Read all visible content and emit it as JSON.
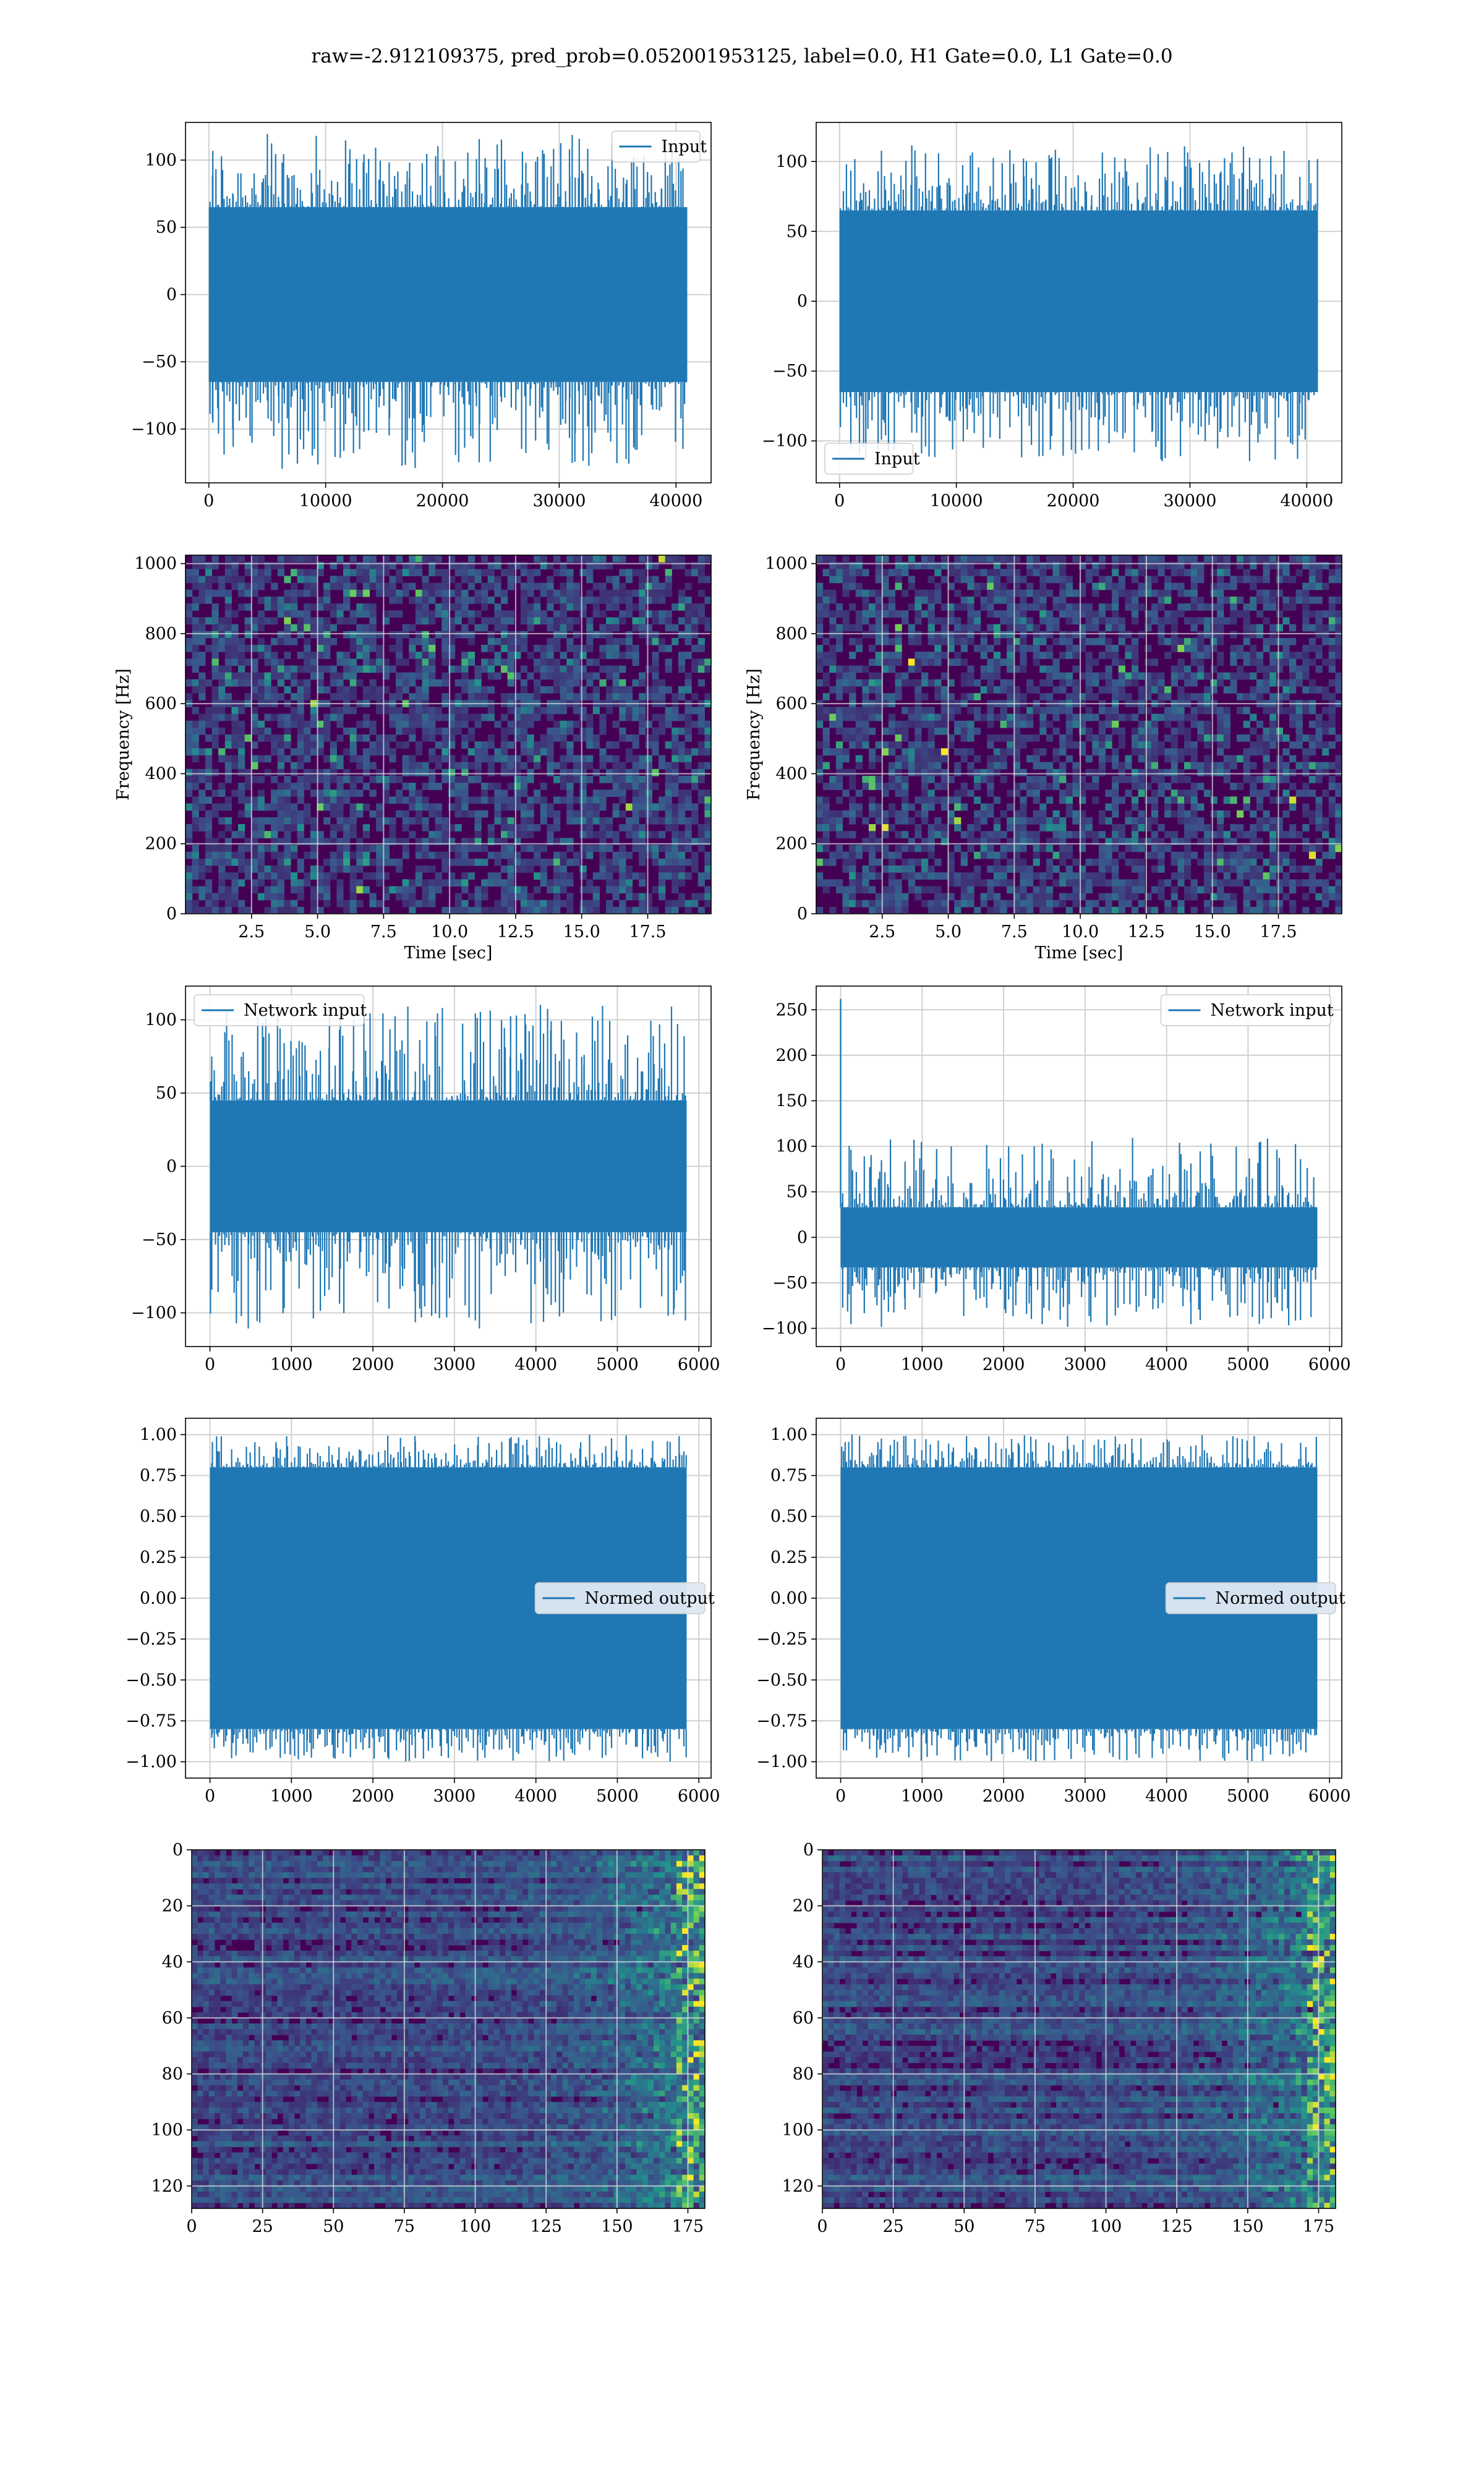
{
  "figure": {
    "title": "raw=-2.912109375, pred_prob=0.052001953125, label=0.0, H1 Gate=0.0, L1 Gate=0.0"
  },
  "colors": {
    "series": "#1f77b4",
    "grid": "#d0d0d0",
    "viridis": [
      "#440154",
      "#3b528b",
      "#21918c",
      "#5ec962",
      "#fde725"
    ]
  },
  "chart_data": [
    {
      "id": "input-h1",
      "type": "line",
      "title": "",
      "xlabel": "",
      "ylabel": "",
      "xlim": [
        -2000,
        43000
      ],
      "ylim": [
        -140,
        128
      ],
      "xticks": [
        0,
        10000,
        20000,
        30000,
        40000
      ],
      "yticks": [
        -100,
        -50,
        0,
        50,
        100
      ],
      "grid": true,
      "legend": "upper right",
      "series": [
        {
          "name": "Input",
          "x_range": [
            0,
            40960
          ],
          "band": [
            -65,
            65
          ],
          "peaks": [
            -130,
            120
          ]
        }
      ]
    },
    {
      "id": "input-l1",
      "type": "line",
      "title": "",
      "xlabel": "",
      "ylabel": "",
      "xlim": [
        -2000,
        43000
      ],
      "ylim": [
        -130,
        128
      ],
      "xticks": [
        0,
        10000,
        20000,
        30000,
        40000
      ],
      "yticks": [
        -100,
        -50,
        0,
        50,
        100
      ],
      "grid": true,
      "legend": "lower left",
      "series": [
        {
          "name": "Input",
          "x_range": [
            0,
            40960
          ],
          "band": [
            -65,
            65
          ],
          "peaks": [
            -115,
            112
          ]
        }
      ]
    },
    {
      "id": "spectrogram-h1",
      "type": "heatmap",
      "title": "",
      "xlabel": "Time [sec]",
      "ylabel": "Frequency [Hz]",
      "xlim": [
        0,
        19.9
      ],
      "ylim": [
        0,
        1024
      ],
      "xticks": [
        2.5,
        5.0,
        7.5,
        10.0,
        12.5,
        15.0,
        17.5
      ],
      "yticks": [
        0,
        200,
        400,
        600,
        800,
        1000
      ],
      "grid": true,
      "colormap": "viridis"
    },
    {
      "id": "spectrogram-l1",
      "type": "heatmap",
      "title": "",
      "xlabel": "Time [sec]",
      "ylabel": "Frequency [Hz]",
      "xlim": [
        0,
        19.9
      ],
      "ylim": [
        0,
        1024
      ],
      "xticks": [
        2.5,
        5.0,
        7.5,
        10.0,
        12.5,
        15.0,
        17.5
      ],
      "yticks": [
        0,
        200,
        400,
        600,
        800,
        1000
      ],
      "grid": true,
      "colormap": "viridis"
    },
    {
      "id": "network-input-h1",
      "type": "line",
      "title": "",
      "xlabel": "",
      "ylabel": "",
      "xlim": [
        -300,
        6150
      ],
      "ylim": [
        -123,
        123
      ],
      "xticks": [
        0,
        1000,
        2000,
        3000,
        4000,
        5000,
        6000
      ],
      "yticks": [
        -100,
        -50,
        0,
        50,
        100
      ],
      "grid": true,
      "legend": "upper left",
      "series": [
        {
          "name": "Network input",
          "x_range": [
            0,
            5850
          ],
          "band": [
            -45,
            45
          ],
          "peaks": [
            -112,
            112
          ]
        }
      ]
    },
    {
      "id": "network-input-l1",
      "type": "line",
      "title": "",
      "xlabel": "",
      "ylabel": "",
      "xlim": [
        -300,
        6150
      ],
      "ylim": [
        -120,
        276
      ],
      "xticks": [
        0,
        1000,
        2000,
        3000,
        4000,
        5000,
        6000
      ],
      "yticks": [
        -100,
        -50,
        0,
        50,
        100,
        150,
        200,
        250
      ],
      "grid": true,
      "legend": "upper right",
      "series": [
        {
          "name": "Network input",
          "x_range": [
            0,
            5850
          ],
          "band": [
            -33,
            33
          ],
          "peaks": [
            -100,
            110
          ],
          "spike": [
            0,
            262
          ]
        }
      ]
    },
    {
      "id": "normed-output-h1",
      "type": "line",
      "title": "",
      "xlabel": "",
      "ylabel": "",
      "xlim": [
        -300,
        6150
      ],
      "ylim": [
        -1.1,
        1.1
      ],
      "xticks": [
        0,
        1000,
        2000,
        3000,
        4000,
        5000,
        6000
      ],
      "yticks": [
        -1.0,
        -0.75,
        -0.5,
        -0.25,
        0.0,
        0.25,
        0.5,
        0.75,
        1.0
      ],
      "grid": true,
      "legend": "center right",
      "series": [
        {
          "name": "Normed output",
          "x_range": [
            0,
            5850
          ],
          "band": [
            -0.8,
            0.8
          ],
          "peaks": [
            -1.0,
            1.0
          ]
        }
      ]
    },
    {
      "id": "normed-output-l1",
      "type": "line",
      "title": "",
      "xlabel": "",
      "ylabel": "",
      "xlim": [
        -300,
        6150
      ],
      "ylim": [
        -1.1,
        1.1
      ],
      "xticks": [
        0,
        1000,
        2000,
        3000,
        4000,
        5000,
        6000
      ],
      "yticks": [
        -1.0,
        -0.75,
        -0.5,
        -0.25,
        0.0,
        0.25,
        0.5,
        0.75,
        1.0
      ],
      "grid": true,
      "legend": "center right",
      "series": [
        {
          "name": "Normed output",
          "x_range": [
            0,
            5850
          ],
          "band": [
            -0.8,
            0.8
          ],
          "peaks": [
            -1.0,
            1.0
          ]
        }
      ]
    },
    {
      "id": "feature-map-h1",
      "type": "heatmap",
      "title": "",
      "xlabel": "",
      "ylabel": "",
      "xlim": [
        0,
        181
      ],
      "ylim": [
        128,
        0
      ],
      "xticks": [
        0,
        25,
        50,
        75,
        100,
        125,
        150,
        175
      ],
      "yticks": [
        0,
        20,
        40,
        60,
        80,
        100,
        120
      ],
      "grid": true,
      "colormap": "viridis",
      "shape": [
        128,
        181
      ]
    },
    {
      "id": "feature-map-l1",
      "type": "heatmap",
      "title": "",
      "xlabel": "",
      "ylabel": "",
      "xlim": [
        0,
        181
      ],
      "ylim": [
        128,
        0
      ],
      "xticks": [
        0,
        25,
        50,
        75,
        100,
        125,
        150,
        175
      ],
      "yticks": [
        0,
        20,
        40,
        60,
        80,
        100,
        120
      ],
      "grid": true,
      "colormap": "viridis",
      "shape": [
        128,
        181
      ]
    }
  ]
}
